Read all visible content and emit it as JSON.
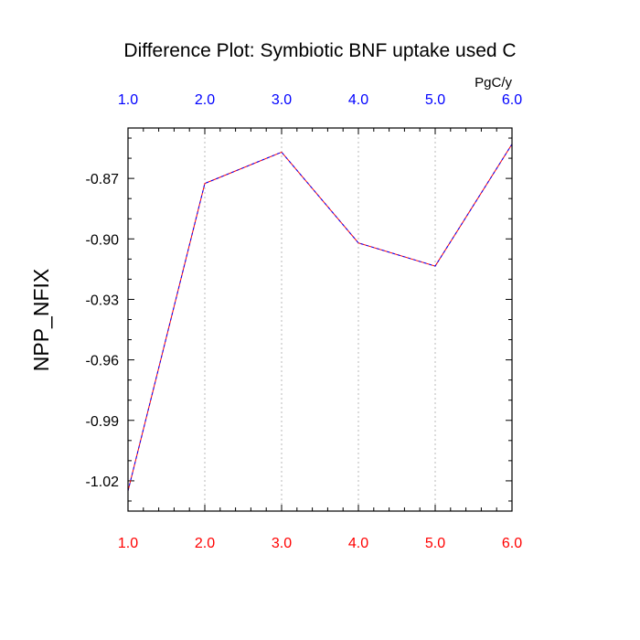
{
  "chart_data": {
    "type": "line",
    "title": "Difference Plot: Symbiotic BNF uptake used C",
    "units_label": "PgC/y",
    "ylabel": "NPP_NFIX",
    "xlabel": "",
    "x": [
      1,
      2,
      3,
      4,
      5,
      6
    ],
    "x_ticks": [
      "1.0",
      "2.0",
      "3.0",
      "4.0",
      "5.0",
      "6.0"
    ],
    "xlim": [
      1,
      6
    ],
    "y_ticks": [
      "-0.87",
      "-0.90",
      "-0.93",
      "-0.96",
      "-0.99",
      "-1.02"
    ],
    "ylim": [
      -1.035,
      -0.845
    ],
    "grid": "vertical dotted lines at major x ticks",
    "top_axis_color": "#0000ff",
    "bottom_axis_color": "#ff0000",
    "series": [
      {
        "values": [
          -1.025,
          -0.8725,
          -0.857,
          -0.902,
          -0.9135,
          -0.853
        ],
        "color": "#ff0000"
      },
      {
        "values": [
          -1.025,
          -0.8725,
          -0.857,
          -0.902,
          -0.9135,
          -0.853
        ],
        "color": "#0000ff",
        "dash": "dashed"
      }
    ]
  }
}
